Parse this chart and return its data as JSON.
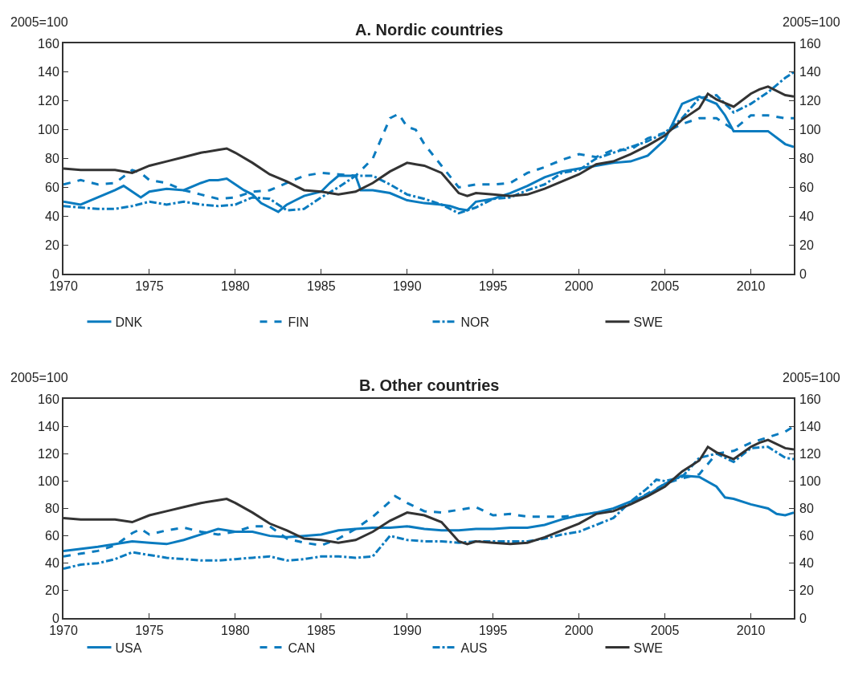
{
  "chart_data": [
    {
      "type": "line",
      "title": "A. Nordic countries",
      "ylabel": "2005=100",
      "y2label": "2005=100",
      "xlim": [
        1970,
        2012.5
      ],
      "xticks": [
        1970,
        1975,
        1980,
        1985,
        1990,
        1995,
        2000,
        2005,
        2010
      ],
      "ylim": [
        0,
        160
      ],
      "yticks": [
        0,
        20,
        40,
        60,
        80,
        100,
        120,
        140,
        160
      ],
      "y2lim": [
        0,
        160
      ],
      "y2ticks": [
        0,
        20,
        40,
        60,
        80,
        100,
        120,
        140,
        160
      ],
      "legend": "bottom",
      "marker": "none",
      "series": [
        {
          "name": "DNK",
          "color": "#0a7bbf",
          "line_style": "solid",
          "x": [
            1970,
            1971,
            1972,
            1973,
            1973.5,
            1974,
            1974.5,
            1975,
            1976,
            1977,
            1978,
            1978.5,
            1979,
            1979.5,
            1980,
            1980.5,
            1981,
            1981.5,
            1982,
            1982.5,
            1983,
            1983.5,
            1984,
            1985,
            1985.5,
            1986,
            1986.5,
            1987,
            1987.3,
            1988,
            1989,
            1990,
            1991,
            1992,
            1992.5,
            1993,
            1993.5,
            1994,
            1995,
            1996,
            1997,
            1998,
            1999,
            2000,
            2001,
            2002,
            2003,
            2004,
            2005,
            2006,
            2007,
            2008,
            2008.5,
            2009,
            2010,
            2011,
            2012,
            2012.5
          ],
          "values": [
            50,
            48,
            53,
            58,
            61,
            57,
            53,
            57,
            59,
            58,
            63,
            65,
            65,
            66,
            62,
            58,
            55,
            49,
            46,
            43,
            48,
            51,
            54,
            57,
            63,
            68,
            68,
            68,
            58,
            58,
            56,
            51,
            49,
            48,
            47,
            45,
            44,
            50,
            52,
            56,
            61,
            67,
            71,
            73,
            75,
            77,
            78,
            82,
            93,
            118,
            123,
            118,
            110,
            99,
            99,
            99,
            90,
            88
          ]
        },
        {
          "name": "FIN",
          "color": "#0a7bbf",
          "line_style": "dashed",
          "x": [
            1970,
            1971,
            1972,
            1973,
            1974,
            1974.5,
            1975,
            1976,
            1977,
            1978,
            1979,
            1980,
            1981,
            1982,
            1983,
            1984,
            1985,
            1986,
            1987,
            1988,
            1989,
            1989.5,
            1990,
            1990.5,
            1991,
            1992,
            1993,
            1994,
            1995,
            1996,
            1997,
            1998,
            1999,
            2000,
            2001,
            2002,
            2003,
            2004,
            2005,
            2006,
            2007,
            2008,
            2009,
            2010,
            2011,
            2012,
            2012.5
          ],
          "values": [
            62,
            65,
            62,
            63,
            72,
            70,
            65,
            63,
            58,
            55,
            52,
            53,
            57,
            58,
            63,
            68,
            70,
            69,
            68,
            80,
            108,
            111,
            102,
            100,
            90,
            75,
            60,
            62,
            62,
            63,
            70,
            74,
            79,
            83,
            81,
            86,
            86,
            94,
            98,
            104,
            108,
            108,
            100,
            110,
            110,
            108,
            108
          ]
        },
        {
          "name": "NOR",
          "color": "#0a7bbf",
          "line_style": "dashdot",
          "x": [
            1970,
            1971,
            1972,
            1973,
            1974,
            1975,
            1976,
            1977,
            1978,
            1979,
            1980,
            1981,
            1982,
            1983,
            1984,
            1985,
            1986,
            1987,
            1988,
            1989,
            1990,
            1991,
            1992,
            1993,
            1994,
            1995,
            1996,
            1997,
            1998,
            1999,
            2000,
            2001,
            2002,
            2003,
            2004,
            2005,
            2006,
            2007,
            2008,
            2009,
            2010,
            2011,
            2012,
            2012.5
          ],
          "values": [
            47,
            46,
            45,
            45,
            47,
            50,
            48,
            50,
            48,
            47,
            48,
            53,
            52,
            44,
            45,
            53,
            60,
            68,
            68,
            62,
            55,
            52,
            48,
            42,
            46,
            52,
            53,
            58,
            62,
            70,
            72,
            80,
            84,
            88,
            92,
            98,
            108,
            122,
            124,
            112,
            118,
            126,
            136,
            140
          ]
        },
        {
          "name": "SWE",
          "color": "#333333",
          "line_style": "solid",
          "x": [
            1970,
            1971,
            1972,
            1973,
            1974,
            1975,
            1976,
            1977,
            1978,
            1979,
            1979.5,
            1980,
            1981,
            1982,
            1983,
            1984,
            1985,
            1986,
            1987,
            1988,
            1989,
            1990,
            1990.5,
            1991,
            1992,
            1993,
            1993.5,
            1994,
            1995,
            1996,
            1997,
            1998,
            1999,
            2000,
            2001,
            2002,
            2003,
            2004,
            2005,
            2006,
            2007,
            2007.5,
            2008,
            2009,
            2010,
            2010.5,
            2011,
            2012,
            2012.5
          ],
          "values": [
            73,
            72,
            72,
            72,
            70,
            75,
            78,
            81,
            84,
            86,
            87,
            84,
            77,
            69,
            64,
            58,
            57,
            55,
            57,
            63,
            71,
            77,
            76,
            75,
            70,
            56,
            54,
            56,
            55,
            54,
            55,
            59,
            64,
            69,
            76,
            78,
            83,
            89,
            96,
            107,
            115,
            125,
            121,
            116,
            125,
            128,
            130,
            124,
            123
          ]
        }
      ]
    },
    {
      "type": "line",
      "title": "B. Other countries",
      "ylabel": "2005=100",
      "y2label": "2005=100",
      "xlim": [
        1970,
        2012.5
      ],
      "xticks": [
        1970,
        1975,
        1980,
        1985,
        1990,
        1995,
        2000,
        2005,
        2010
      ],
      "ylim": [
        0,
        160
      ],
      "yticks": [
        0,
        20,
        40,
        60,
        80,
        100,
        120,
        140,
        160
      ],
      "y2lim": [
        0,
        160
      ],
      "y2ticks": [
        0,
        20,
        40,
        60,
        80,
        100,
        120,
        140,
        160
      ],
      "legend": "bottom",
      "marker": "none",
      "series": [
        {
          "name": "USA",
          "color": "#0a7bbf",
          "line_style": "solid",
          "x": [
            1970,
            1972,
            1974,
            1975,
            1976,
            1977,
            1978,
            1979,
            1980,
            1981,
            1982,
            1983,
            1984,
            1985,
            1986,
            1987,
            1988,
            1989,
            1990,
            1991,
            1992,
            1993,
            1994,
            1995,
            1996,
            1997,
            1998,
            1999,
            2000,
            2001,
            2002,
            2003,
            2004,
            2005,
            2006,
            2007,
            2008,
            2008.5,
            2009,
            2010,
            2011,
            2011.5,
            2012,
            2012.5
          ],
          "values": [
            49,
            52,
            56,
            55,
            54,
            57,
            61,
            65,
            63,
            63,
            60,
            59,
            60,
            61,
            64,
            65,
            66,
            66,
            67,
            65,
            64,
            64,
            65,
            65,
            66,
            66,
            68,
            72,
            75,
            77,
            80,
            85,
            90,
            98,
            104,
            103,
            96,
            88,
            87,
            83,
            80,
            76,
            75,
            77
          ]
        },
        {
          "name": "CAN",
          "color": "#0a7bbf",
          "line_style": "dashed",
          "x": [
            1970,
            1971,
            1972,
            1973,
            1974,
            1974.5,
            1975,
            1976,
            1977,
            1978,
            1979,
            1980,
            1981,
            1982,
            1983,
            1984,
            1985,
            1986,
            1987,
            1988,
            1989,
            1989.3,
            1990,
            1991,
            1992,
            1993,
            1994,
            1995,
            1996,
            1997,
            1998,
            1999,
            2000,
            2001,
            2002,
            2003,
            2004,
            2005,
            2006,
            2007,
            2008,
            2009,
            2010,
            2011,
            2012,
            2012.5
          ],
          "values": [
            45,
            47,
            49,
            53,
            62,
            65,
            61,
            64,
            66,
            63,
            61,
            63,
            67,
            67,
            58,
            55,
            53,
            58,
            65,
            74,
            85,
            89,
            84,
            78,
            77,
            79,
            81,
            75,
            76,
            74,
            74,
            74,
            75,
            77,
            78,
            84,
            91,
            98,
            102,
            105,
            120,
            122,
            128,
            132,
            136,
            140
          ]
        },
        {
          "name": "AUS",
          "color": "#0a7bbf",
          "line_style": "dashdot",
          "x": [
            1970,
            1971,
            1972,
            1973,
            1974,
            1975,
            1976,
            1977,
            1978,
            1979,
            1980,
            1981,
            1982,
            1983,
            1984,
            1985,
            1986,
            1987,
            1988,
            1989,
            1990,
            1991,
            1992,
            1993,
            1994,
            1995,
            1996,
            1997,
            1998,
            1999,
            2000,
            2001,
            2002,
            2003,
            2004,
            2004.5,
            2005,
            2006,
            2007,
            2008,
            2009,
            2010,
            2011,
            2012,
            2012.5
          ],
          "values": [
            36,
            39,
            40,
            43,
            48,
            46,
            44,
            43,
            42,
            42,
            43,
            44,
            45,
            42,
            43,
            45,
            45,
            44,
            45,
            60,
            57,
            56,
            56,
            55,
            56,
            56,
            56,
            56,
            58,
            61,
            63,
            68,
            73,
            85,
            95,
            101,
            100,
            103,
            117,
            120,
            114,
            124,
            125,
            117,
            116
          ]
        },
        {
          "name": "SWE",
          "color": "#333333",
          "line_style": "solid",
          "x": [
            1970,
            1971,
            1972,
            1973,
            1974,
            1975,
            1976,
            1977,
            1978,
            1979,
            1979.5,
            1980,
            1981,
            1982,
            1983,
            1984,
            1985,
            1986,
            1987,
            1988,
            1989,
            1990,
            1990.5,
            1991,
            1992,
            1993,
            1993.5,
            1994,
            1995,
            1996,
            1997,
            1998,
            1999,
            2000,
            2001,
            2002,
            2003,
            2004,
            2005,
            2006,
            2007,
            2007.5,
            2008,
            2009,
            2010,
            2010.5,
            2011,
            2012,
            2012.5
          ],
          "values": [
            73,
            72,
            72,
            72,
            70,
            75,
            78,
            81,
            84,
            86,
            87,
            84,
            77,
            69,
            64,
            58,
            57,
            55,
            57,
            63,
            71,
            77,
            76,
            75,
            70,
            56,
            54,
            56,
            55,
            54,
            55,
            59,
            64,
            69,
            76,
            78,
            83,
            89,
            96,
            107,
            115,
            125,
            121,
            116,
            125,
            128,
            130,
            124,
            123
          ]
        }
      ]
    }
  ]
}
